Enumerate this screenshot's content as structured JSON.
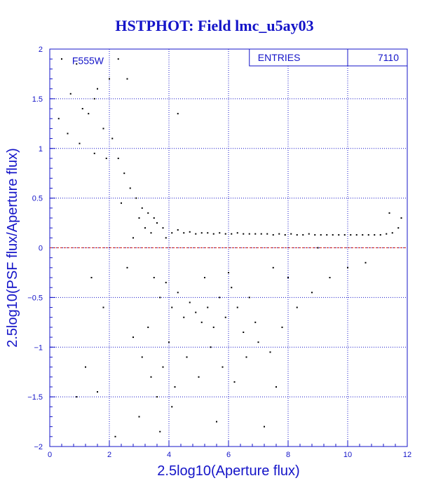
{
  "title": "HSTPHOT: Field lmc_u5ay03",
  "colors": {
    "axis": "#1414c8",
    "grid": "#1414c8",
    "reference_line": "#c81414",
    "points": "#000000",
    "background": "#ffffff"
  },
  "chart_data": {
    "type": "scatter",
    "title": "HSTPHOT: Field lmc_u5ay03",
    "xlabel": "2.5log10(Aperture flux)",
    "ylabel": "2.5log10(PSF flux/Aperture flux)",
    "xlim": [
      0,
      12
    ],
    "ylim": [
      -2,
      2
    ],
    "x_ticks": [
      "0",
      "2",
      "4",
      "6",
      "8",
      "10",
      "12"
    ],
    "y_ticks": [
      "-2",
      "-1.5",
      "-1",
      "-0.5",
      "0",
      "0.5",
      "1",
      "1.5",
      "2"
    ],
    "grid": true,
    "grid_style": "dotted",
    "filter_label": "F555W",
    "stats": {
      "label": "ENTRIES",
      "value": "7110"
    },
    "reference_line": {
      "y": 0,
      "color": "#c81414",
      "style": "dashed"
    },
    "series": [
      {
        "points": [
          [
            0.4,
            1.9
          ],
          [
            0.7,
            1.55
          ],
          [
            0.9,
            1.85
          ],
          [
            1.1,
            1.4
          ],
          [
            1.3,
            1.35
          ],
          [
            1.5,
            1.5
          ],
          [
            1.8,
            1.2
          ],
          [
            0.6,
            1.15
          ],
          [
            1.0,
            1.05
          ],
          [
            2.3,
            1.9
          ],
          [
            2.6,
            1.7
          ],
          [
            2.0,
            1.7
          ],
          [
            1.6,
            1.6
          ],
          [
            0.3,
            1.3
          ],
          [
            4.3,
            1.35
          ],
          [
            1.9,
            0.9
          ],
          [
            1.5,
            0.95
          ],
          [
            2.1,
            1.1
          ],
          [
            2.3,
            0.9
          ],
          [
            2.5,
            0.75
          ],
          [
            2.7,
            0.6
          ],
          [
            2.4,
            0.45
          ],
          [
            2.9,
            0.5
          ],
          [
            3.1,
            0.4
          ],
          [
            3.3,
            0.35
          ],
          [
            3.5,
            0.3
          ],
          [
            3.0,
            0.3
          ],
          [
            3.2,
            0.2
          ],
          [
            3.6,
            0.25
          ],
          [
            3.8,
            0.2
          ],
          [
            3.4,
            0.15
          ],
          [
            2.8,
            0.1
          ],
          [
            3.9,
            0.1
          ],
          [
            4.1,
            0.15
          ],
          [
            4.3,
            0.18
          ],
          [
            4.5,
            0.15
          ],
          [
            4.7,
            0.16
          ],
          [
            4.9,
            0.14
          ],
          [
            5.1,
            0.15
          ],
          [
            5.3,
            0.15
          ],
          [
            5.5,
            0.14
          ],
          [
            5.7,
            0.15
          ],
          [
            5.9,
            0.14
          ],
          [
            6.1,
            0.14
          ],
          [
            6.3,
            0.15
          ],
          [
            6.5,
            0.14
          ],
          [
            6.7,
            0.14
          ],
          [
            6.9,
            0.14
          ],
          [
            7.1,
            0.14
          ],
          [
            7.3,
            0.14
          ],
          [
            7.5,
            0.13
          ],
          [
            7.7,
            0.14
          ],
          [
            7.9,
            0.13
          ],
          [
            8.1,
            0.14
          ],
          [
            8.3,
            0.13
          ],
          [
            8.5,
            0.13
          ],
          [
            8.7,
            0.14
          ],
          [
            8.9,
            0.13
          ],
          [
            9.1,
            0.13
          ],
          [
            9.3,
            0.13
          ],
          [
            9.5,
            0.13
          ],
          [
            9.7,
            0.13
          ],
          [
            9.9,
            0.13
          ],
          [
            10.1,
            0.13
          ],
          [
            10.3,
            0.13
          ],
          [
            10.5,
            0.13
          ],
          [
            10.7,
            0.13
          ],
          [
            10.9,
            0.13
          ],
          [
            11.1,
            0.13
          ],
          [
            11.3,
            0.14
          ],
          [
            11.5,
            0.15
          ],
          [
            11.7,
            0.2
          ],
          [
            11.8,
            0.3
          ],
          [
            11.4,
            0.35
          ],
          [
            3.5,
            -0.3
          ],
          [
            3.7,
            -0.5
          ],
          [
            3.9,
            -0.35
          ],
          [
            4.1,
            -0.6
          ],
          [
            4.3,
            -0.45
          ],
          [
            4.5,
            -0.7
          ],
          [
            4.7,
            -0.55
          ],
          [
            4.9,
            -0.65
          ],
          [
            5.1,
            -0.75
          ],
          [
            5.3,
            -0.6
          ],
          [
            5.5,
            -0.8
          ],
          [
            5.7,
            -0.5
          ],
          [
            5.9,
            -0.7
          ],
          [
            6.1,
            -0.4
          ],
          [
            6.3,
            -0.6
          ],
          [
            6.5,
            -0.85
          ],
          [
            6.7,
            -0.5
          ],
          [
            6.9,
            -0.75
          ],
          [
            3.3,
            -0.8
          ],
          [
            3.1,
            -1.1
          ],
          [
            3.4,
            -1.3
          ],
          [
            3.6,
            -1.5
          ],
          [
            3.8,
            -1.2
          ],
          [
            4.0,
            -0.95
          ],
          [
            4.2,
            -1.4
          ],
          [
            4.6,
            -1.1
          ],
          [
            5.0,
            -1.3
          ],
          [
            5.4,
            -1.0
          ],
          [
            5.8,
            -1.2
          ],
          [
            6.2,
            -1.35
          ],
          [
            6.6,
            -1.1
          ],
          [
            7.0,
            -0.95
          ],
          [
            7.4,
            -1.05
          ],
          [
            7.8,
            -0.8
          ],
          [
            8.3,
            -0.6
          ],
          [
            8.8,
            -0.45
          ],
          [
            9.4,
            -0.3
          ],
          [
            10.0,
            -0.2
          ],
          [
            10.6,
            -0.15
          ],
          [
            3.0,
            -1.7
          ],
          [
            3.7,
            -1.85
          ],
          [
            4.1,
            -1.6
          ],
          [
            5.6,
            -1.75
          ],
          [
            7.2,
            -1.8
          ],
          [
            7.6,
            -1.4
          ],
          [
            1.2,
            -1.2
          ],
          [
            1.6,
            -1.45
          ],
          [
            0.9,
            -1.5
          ],
          [
            2.2,
            -1.9
          ],
          [
            1.8,
            -0.6
          ],
          [
            1.4,
            -0.3
          ],
          [
            2.6,
            -0.2
          ],
          [
            2.8,
            -0.9
          ],
          [
            5.2,
            -0.3
          ],
          [
            6.0,
            -0.25
          ],
          [
            7.5,
            -0.2
          ],
          [
            8.0,
            -0.3
          ],
          [
            9.0,
            0.0
          ]
        ]
      }
    ]
  }
}
